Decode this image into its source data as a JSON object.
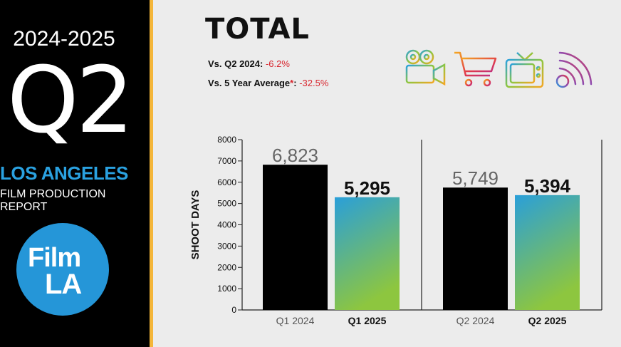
{
  "sidebar": {
    "years": "2024-2025",
    "quarter": "Q2",
    "city": "LOS ANGELES",
    "report": "FILM PRODUCTION REPORT",
    "logo_top": "Film",
    "logo_bottom": "LA"
  },
  "header": {
    "title": "TOTAL",
    "cmp1_label": "Vs. Q2 2024:",
    "cmp1_value": "-6.2%",
    "cmp2_label": "Vs. 5 Year Average",
    "cmp2_star": "*",
    "cmp2_colon": ":",
    "cmp2_value": "-32.5%"
  },
  "icons": [
    "movie-camera-icon",
    "shopping-cart-icon",
    "television-icon",
    "wifi-signal-icon"
  ],
  "colors": {
    "accent": "#f4b63a",
    "brand_blue": "#2aa1e0",
    "negative": "#d8262e",
    "bar_prior": "#000000",
    "bar_current_top": "#2a9fd9",
    "bar_current_bottom": "#8dc63f"
  },
  "chart_data": {
    "type": "bar",
    "ylabel": "SHOOT DAYS",
    "xlabel": "",
    "ylim": [
      0,
      8000
    ],
    "yticks": [
      0,
      1000,
      2000,
      3000,
      4000,
      5000,
      6000,
      7000,
      8000
    ],
    "grid": false,
    "groups": [
      {
        "categories": [
          "Q1 2024",
          "Q1 2025"
        ],
        "values": [
          6823,
          5295
        ],
        "labels": [
          "6,823",
          "5,295"
        ]
      },
      {
        "categories": [
          "Q2 2024",
          "Q2 2025"
        ],
        "values": [
          5749,
          5394
        ],
        "labels": [
          "5,749",
          "5,394"
        ]
      }
    ]
  }
}
